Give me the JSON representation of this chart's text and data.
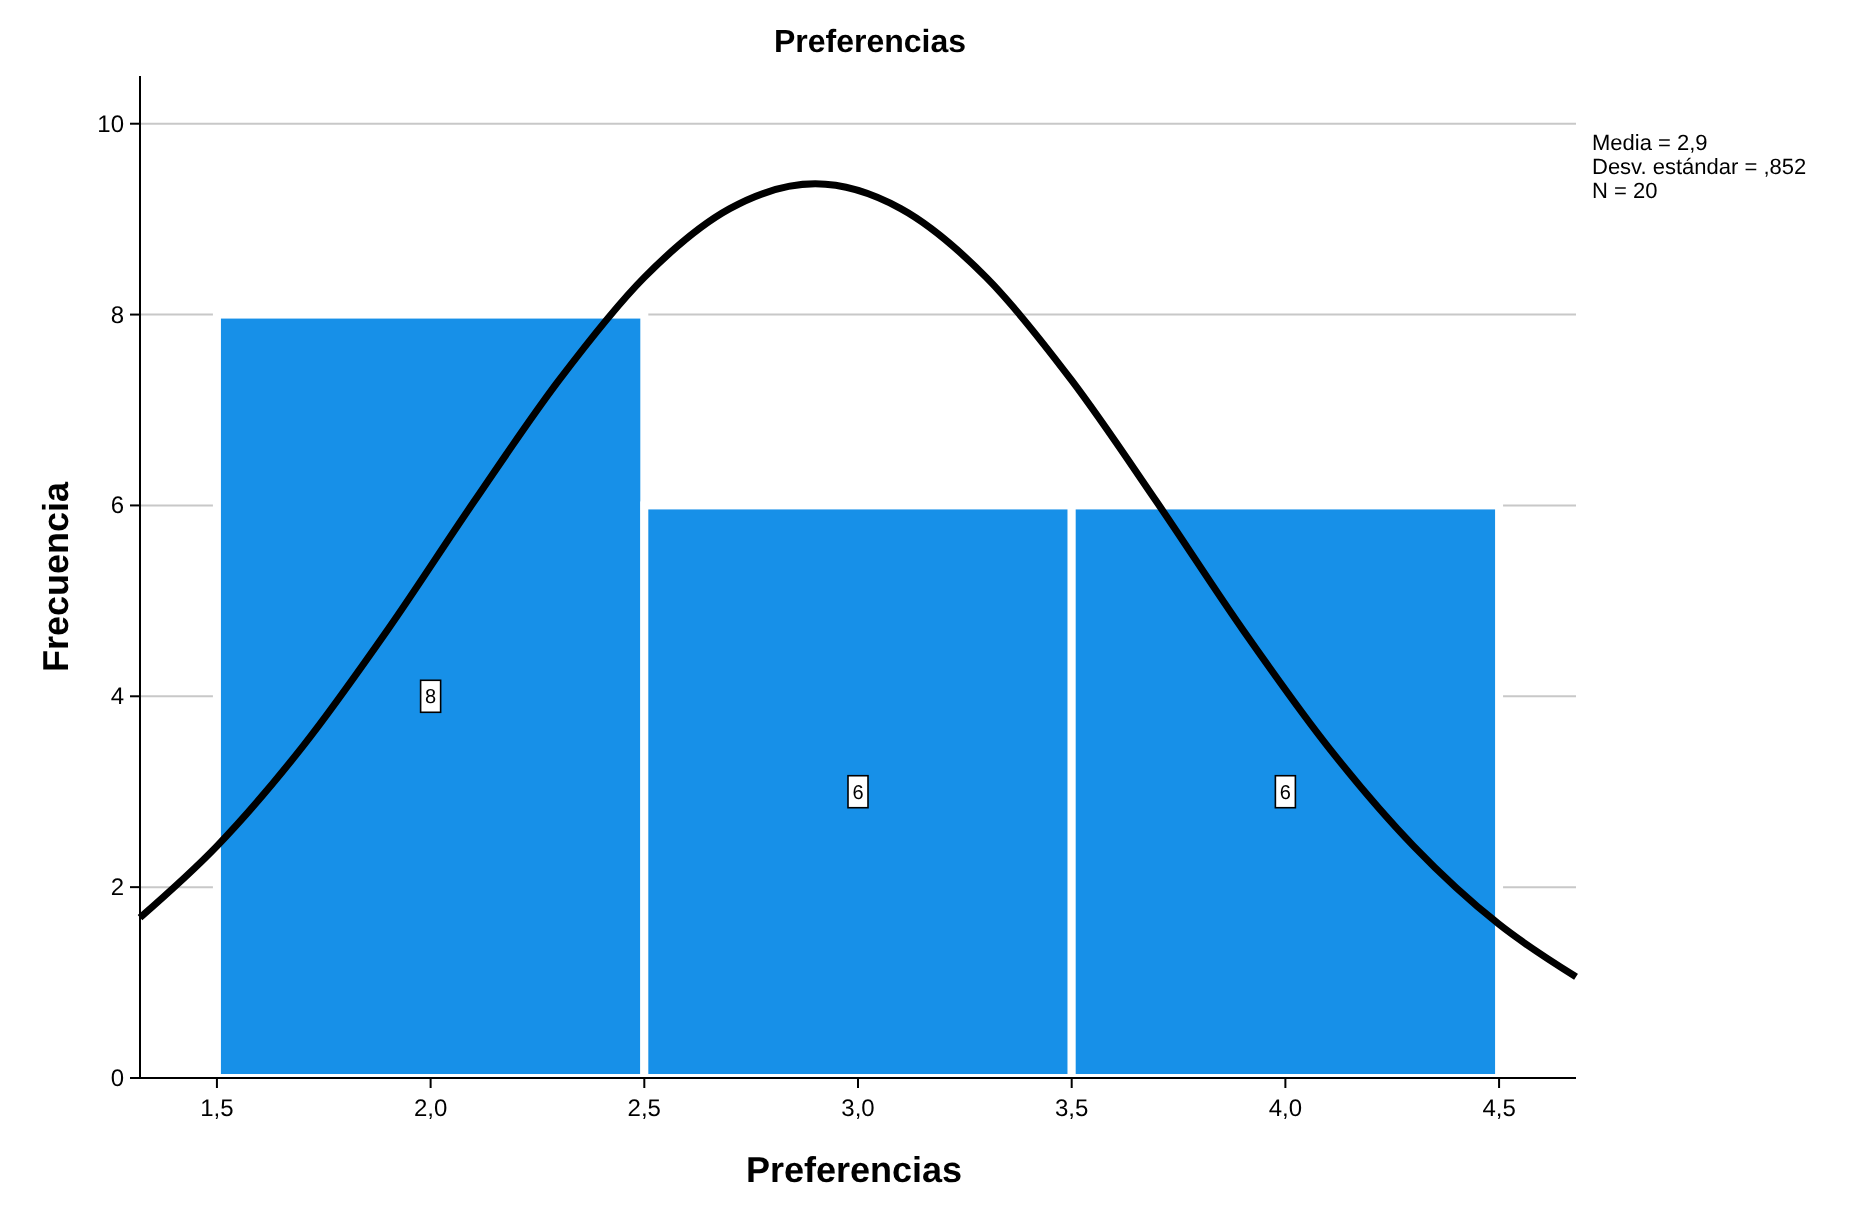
{
  "chart_data": {
    "type": "histogram",
    "title": "Preferencias",
    "xlabel": "Preferencias",
    "ylabel": "Frecuencia",
    "bins": [
      1.5,
      2.5,
      3.5,
      4.5
    ],
    "series": [
      {
        "color": "#1790e8",
        "values": [
          8,
          6,
          6
        ],
        "value_labels": [
          "8",
          "6",
          "6"
        ]
      },
      {
        "type": "line",
        "color": "#000000",
        "x": [
          1.32,
          1.5,
          1.7,
          1.9,
          2.1,
          2.3,
          2.5,
          2.7,
          2.9,
          3.1,
          3.3,
          3.5,
          3.7,
          3.9,
          4.1,
          4.3,
          4.5,
          4.68
        ],
        "values": [
          1.68,
          2.43,
          3.47,
          4.7,
          6.03,
          7.31,
          8.39,
          9.11,
          9.37,
          9.11,
          8.39,
          7.31,
          6.03,
          4.7,
          3.47,
          2.43,
          1.61,
          1.06
        ]
      }
    ],
    "xlim": [
      1.32,
      4.68
    ],
    "xticks": [
      {
        "value": 1.5,
        "label": "1,5"
      },
      {
        "value": 2,
        "label": "2,0"
      },
      {
        "value": 2.5,
        "label": "2,5"
      },
      {
        "value": 3,
        "label": "3,0"
      },
      {
        "value": 3.5,
        "label": "3,5"
      },
      {
        "value": 4,
        "label": "4,0"
      },
      {
        "value": 4.5,
        "label": "4,5"
      }
    ],
    "ylim": [
      0,
      10.5
    ],
    "yticks": [
      0,
      2,
      4,
      6,
      8,
      10
    ],
    "grid": "y",
    "marker": "none",
    "line_style": "solid",
    "annotations": [
      "Media = 2,9",
      "Desv. estándar = ,852",
      "N = 20"
    ]
  }
}
